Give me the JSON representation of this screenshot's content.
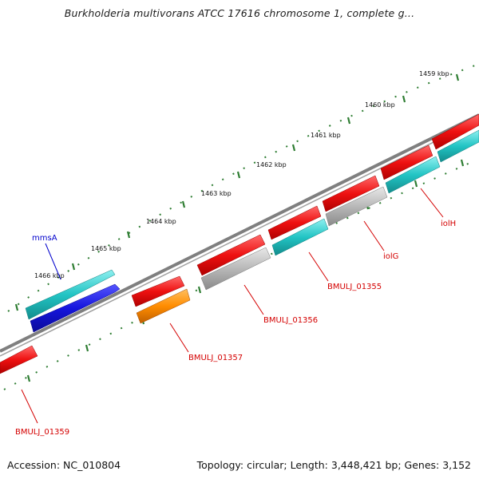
{
  "header": {
    "title": "Burkholderia multivorans ATCC 17616 chromosome 1, complete g..."
  },
  "footer": {
    "accession": "Accession: NC_010804",
    "summary": "Topology: circular; Length: 3,448,421 bp; Genes: 3,152"
  },
  "ticks": [
    "1459 kbp",
    "1460 kbp",
    "1461 kbp",
    "1462 kbp",
    "1463 kbp",
    "1464 kbp",
    "1465 kbp",
    "1466 kbp"
  ],
  "gene_labels": [
    {
      "id": "mmsA",
      "text": "mmsA"
    },
    {
      "id": "iolH",
      "text": "iolH"
    },
    {
      "id": "iolG",
      "text": "iolG"
    },
    {
      "id": "BMULJ_01355",
      "text": "BMULJ_01355"
    },
    {
      "id": "BMULJ_01356",
      "text": "BMULJ_01356"
    },
    {
      "id": "BMULJ_01357",
      "text": "BMULJ_01357"
    },
    {
      "id": "BMULJ_01359",
      "text": "BMULJ_01359"
    }
  ],
  "colors": {
    "backbone": "#808080",
    "tick": "#2e7d32",
    "red_gene": "#ee1111",
    "cyan_gene": "#22c4c4",
    "blue_gene": "#1515dd",
    "orange_gene": "#ff8c00",
    "gray_gene": "#b8b8b8",
    "red_label": "#d40000",
    "blue_label": "#0000cc"
  }
}
